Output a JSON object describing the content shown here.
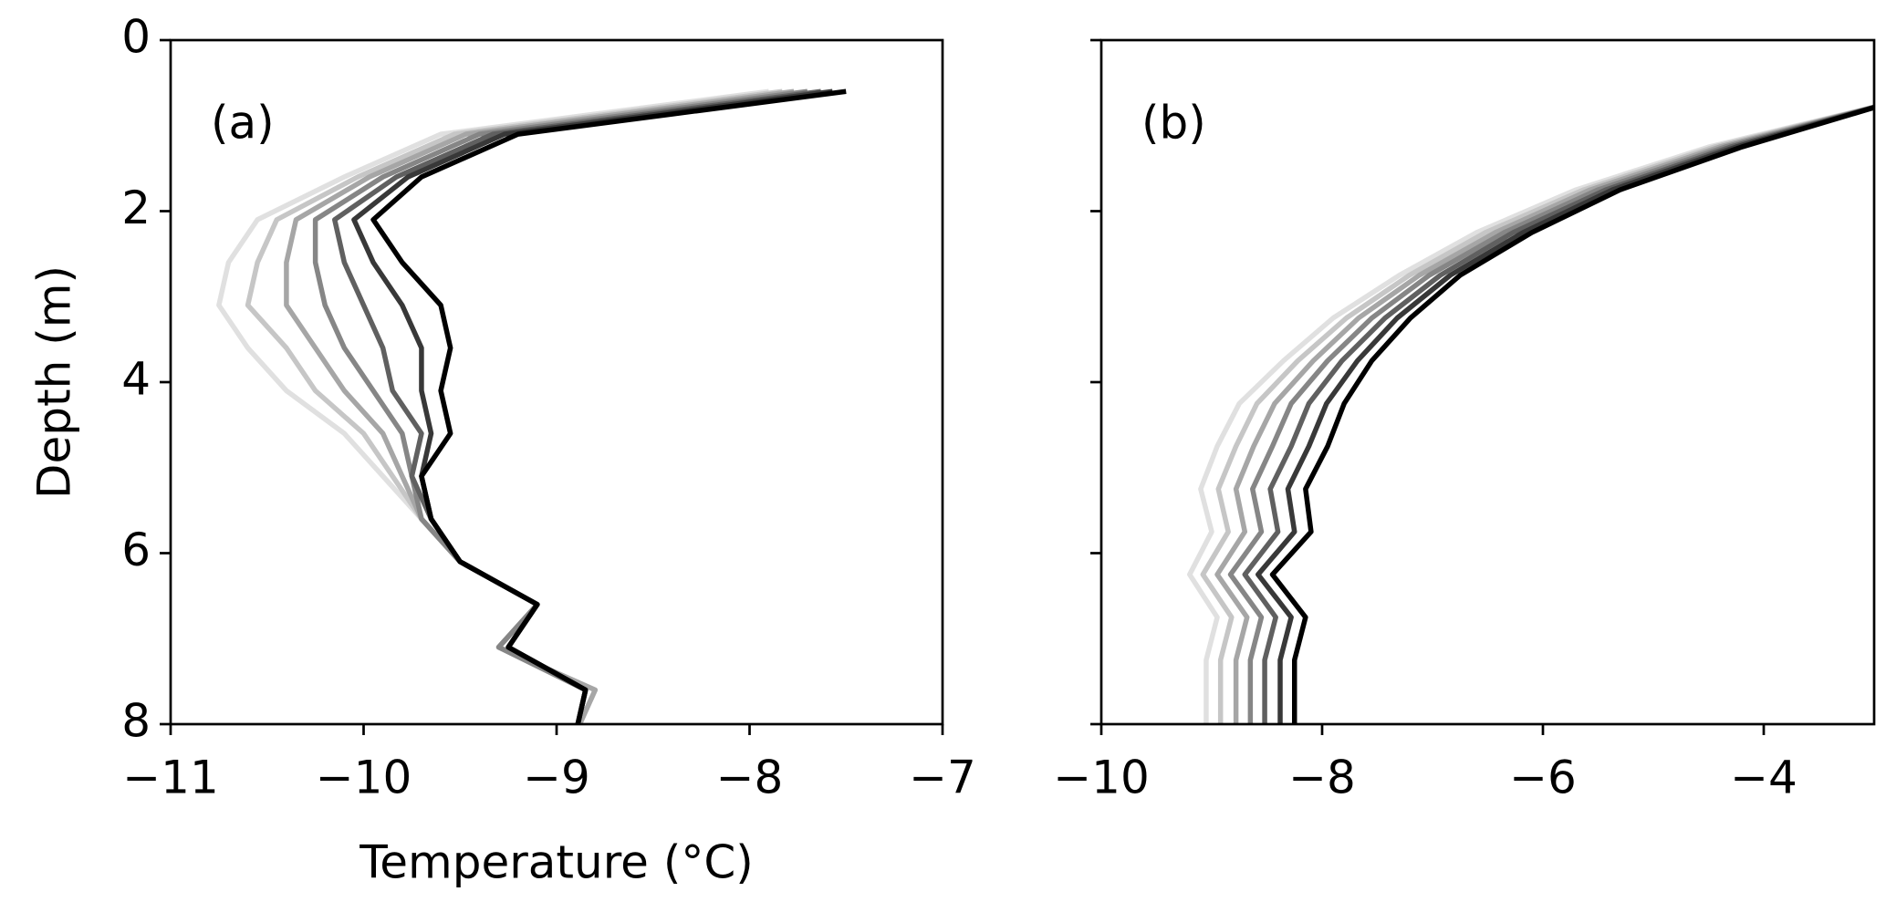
{
  "chart_data": [
    {
      "type": "line",
      "annotation": "(a)",
      "xlabel": "Temperature (°C)",
      "ylabel": "Depth (m)",
      "xlim": [
        -11,
        -7
      ],
      "xticks": [
        -11,
        -10,
        -9,
        -8,
        -7
      ],
      "ylim": [
        0,
        8
      ],
      "yticks": [
        0,
        2,
        4,
        6,
        8
      ],
      "y_inverted": true,
      "show_ytick_labels": true,
      "y": [
        0.6,
        1.1,
        1.6,
        2.1,
        2.6,
        3.1,
        3.6,
        4.1,
        4.6,
        5.1,
        5.6,
        6.1,
        6.6,
        7.1,
        7.6,
        8.1
      ],
      "series": [
        {
          "color": "#e0e0e0",
          "values": [
            -7.9,
            -9.6,
            -10.1,
            -10.55,
            -10.7,
            -10.75,
            -10.6,
            -10.4,
            -10.1,
            -9.9,
            -9.7,
            -9.5,
            -9.1,
            -9.3,
            -8.8,
            -8.9
          ]
        },
        {
          "color": "#c6c6c6",
          "values": [
            -7.83,
            -9.53,
            -10.03,
            -10.45,
            -10.55,
            -10.6,
            -10.4,
            -10.25,
            -10,
            -9.85,
            -9.7,
            -9.5,
            -9.1,
            -9.3,
            -8.8,
            -8.9
          ]
        },
        {
          "color": "#a6a6a6",
          "values": [
            -7.77,
            -9.47,
            -9.97,
            -10.35,
            -10.4,
            -10.4,
            -10.25,
            -10.1,
            -9.9,
            -9.8,
            -9.7,
            -9.5,
            -9.1,
            -9.3,
            -8.8,
            -8.9
          ]
        },
        {
          "color": "#868686",
          "values": [
            -7.7,
            -9.4,
            -9.9,
            -10.25,
            -10.25,
            -10.2,
            -10.1,
            -9.95,
            -9.8,
            -9.75,
            -9.7,
            -9.5,
            -9.1,
            -9.3,
            -8.85,
            -8.9
          ]
        },
        {
          "color": "#606060",
          "values": [
            -7.63,
            -9.33,
            -9.83,
            -10.15,
            -10.1,
            -10,
            -9.9,
            -9.85,
            -9.7,
            -9.75,
            -9.65,
            -9.5,
            -9.1,
            -9.25,
            -8.85,
            -8.9
          ]
        },
        {
          "color": "#383838",
          "values": [
            -7.57,
            -9.27,
            -9.77,
            -10.05,
            -9.95,
            -9.8,
            -9.7,
            -9.7,
            -9.65,
            -9.7,
            -9.65,
            -9.5,
            -9.1,
            -9.25,
            -8.85,
            -8.9
          ]
        },
        {
          "color": "#000000",
          "values": [
            -7.5,
            -9.2,
            -9.7,
            -9.95,
            -9.8,
            -9.6,
            -9.55,
            -9.6,
            -9.55,
            -9.7,
            -9.65,
            -9.5,
            -9.1,
            -9.25,
            -8.85,
            -8.9
          ]
        }
      ]
    },
    {
      "type": "line",
      "annotation": "(b)",
      "xlim": [
        -10,
        -3
      ],
      "xticks": [
        -10,
        -8,
        -6,
        -4
      ],
      "ylim": [
        0,
        8
      ],
      "yticks": [
        0,
        2,
        4,
        6,
        8
      ],
      "y_inverted": true,
      "show_ytick_labels": false,
      "y": [
        0.75,
        1.25,
        1.75,
        2.25,
        2.75,
        3.25,
        3.75,
        4.25,
        4.75,
        5.25,
        5.75,
        6.25,
        6.75,
        7.25,
        7.75,
        8.25
      ],
      "series": [
        {
          "color": "#e0e0e0",
          "values": [
            -2.9,
            -4.5,
            -5.7,
            -6.6,
            -7.3,
            -7.9,
            -8.35,
            -8.75,
            -8.95,
            -9.1,
            -9.0,
            -9.2,
            -8.95,
            -9.05,
            -9.05,
            -9.05
          ]
        },
        {
          "color": "#c6c6c6",
          "values": [
            -2.9,
            -4.45,
            -5.63,
            -6.52,
            -7.21,
            -7.78,
            -8.22,
            -8.59,
            -8.78,
            -8.94,
            -8.85,
            -9.08,
            -8.82,
            -8.92,
            -8.92,
            -8.92
          ]
        },
        {
          "color": "#a6a6a6",
          "values": [
            -2.9,
            -4.4,
            -5.57,
            -6.43,
            -7.12,
            -7.67,
            -8.08,
            -8.43,
            -8.62,
            -8.78,
            -8.7,
            -8.95,
            -8.68,
            -8.78,
            -8.78,
            -8.78
          ]
        },
        {
          "color": "#868686",
          "values": [
            -2.9,
            -4.35,
            -5.5,
            -6.35,
            -7.03,
            -7.55,
            -7.95,
            -8.28,
            -8.45,
            -8.63,
            -8.55,
            -8.83,
            -8.55,
            -8.65,
            -8.65,
            -8.65
          ]
        },
        {
          "color": "#606060",
          "values": [
            -2.9,
            -4.3,
            -5.43,
            -6.27,
            -6.93,
            -7.43,
            -7.82,
            -8.12,
            -8.28,
            -8.47,
            -8.4,
            -8.7,
            -8.42,
            -8.52,
            -8.52,
            -8.52
          ]
        },
        {
          "color": "#383838",
          "values": [
            -2.9,
            -4.25,
            -5.37,
            -6.18,
            -6.84,
            -7.32,
            -7.68,
            -7.96,
            -8.12,
            -8.31,
            -8.25,
            -8.58,
            -8.28,
            -8.38,
            -8.38,
            -8.38
          ]
        },
        {
          "color": "#000000",
          "values": [
            -2.9,
            -4.2,
            -5.3,
            -6.1,
            -6.75,
            -7.2,
            -7.55,
            -7.8,
            -7.95,
            -8.15,
            -8.1,
            -8.45,
            -8.15,
            -8.25,
            -8.25,
            -8.25
          ]
        }
      ]
    }
  ]
}
